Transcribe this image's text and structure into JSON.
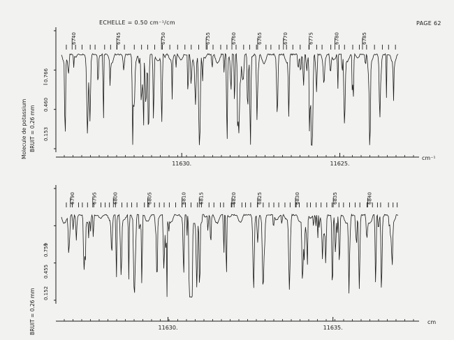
{
  "header": {
    "title": "ECHELLE = 0.50 cm⁻¹/cm",
    "page": "PAGE 62"
  },
  "side_label": "Molecule de potassium",
  "colors": {
    "ink": "#1a1a1a",
    "paper": "#f2f2f0"
  },
  "chart_data": [
    {
      "type": "line",
      "xunit": "cm⁻¹",
      "noise_label": "BRUIT = 0.26 mm",
      "yaxis_symbol": "I",
      "yticks": [
        0.153,
        0.46,
        0.766
      ],
      "yticks_text": [
        "0.153",
        "0.460",
        "0.766"
      ],
      "xticks": [
        {
          "label": "11630.",
          "pos": 0.35
        },
        {
          "label": "11625.",
          "pos": 0.81
        }
      ],
      "line_numbers": [
        6740,
        6745,
        6750,
        6755,
        6760,
        6765,
        6770,
        6775,
        6780,
        6785
      ],
      "line_number_pos": [
        0.035,
        0.165,
        0.295,
        0.425,
        0.5,
        0.575,
        0.65,
        0.725,
        0.8,
        0.88
      ],
      "seed": 7,
      "dips": 78
    },
    {
      "type": "line",
      "xunit": "cm",
      "noise_label": "BRUIT = 0.26 mm",
      "yaxis_symbol": "I",
      "yticks": [
        0.152,
        0.455,
        0.759
      ],
      "yticks_text": [
        "0.152",
        "0.455",
        "0.759"
      ],
      "xticks": [
        {
          "label": "11630.",
          "pos": 0.31
        },
        {
          "label": "11635.",
          "pos": 0.79
        }
      ],
      "line_numbers": [
        6790,
        6795,
        6800,
        6805,
        6810,
        6815,
        6820,
        6825,
        6830,
        6835,
        6840
      ],
      "line_number_pos": [
        0.03,
        0.095,
        0.155,
        0.255,
        0.355,
        0.405,
        0.5,
        0.575,
        0.685,
        0.795,
        0.895
      ],
      "seed": 13,
      "dips": 84
    }
  ]
}
